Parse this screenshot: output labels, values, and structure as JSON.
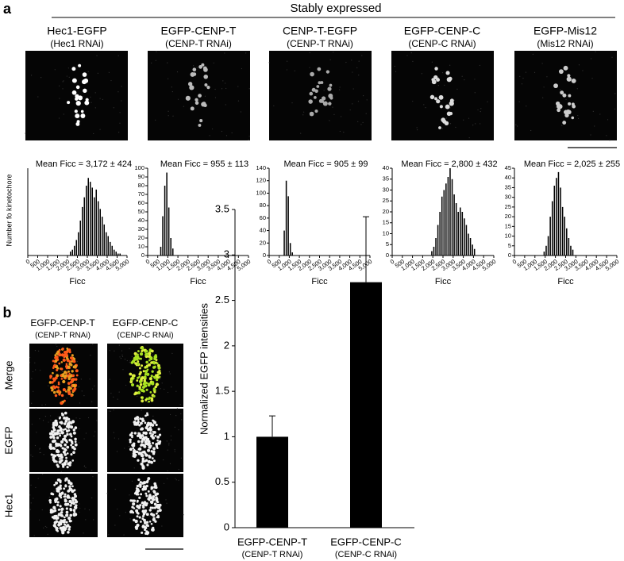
{
  "panel_a": {
    "label": "a",
    "header": "Stably expressed",
    "columns": [
      {
        "title": "Hec1-EGFP",
        "subtitle": "(Hec1 RNAi)"
      },
      {
        "title": "EGFP-CENP-T",
        "subtitle": "(CENP-T RNAi)"
      },
      {
        "title": "CENP-T-EGFP",
        "subtitle": "(CENP-T RNAi)"
      },
      {
        "title": "EGFP-CENP-C",
        "subtitle": "(CENP-C RNAi)"
      },
      {
        "title": "EGFP-Mis12",
        "subtitle": "(Mis12 RNAi)"
      }
    ]
  },
  "panel_b": {
    "label": "b",
    "columns": [
      {
        "title": "EGFP-CENP-T",
        "subtitle": "(CENP-T RNAi)"
      },
      {
        "title": "EGFP-CENP-C",
        "subtitle": "(CENP-C RNAi)"
      }
    ],
    "rows": [
      "Merge",
      "EGFP",
      "Hec1"
    ],
    "row_colors": [
      "#000000",
      "#1aa34a",
      "#e0168c"
    ]
  },
  "chart_data": [
    {
      "type": "histogram",
      "annotation": "Mean Ficc = 3,172 ± 424",
      "color": "#000000",
      "bins": [
        2100,
        2200,
        2300,
        2400,
        2500,
        2600,
        2700,
        2800,
        2900,
        3000,
        3100,
        3200,
        3300,
        3400,
        3500,
        3600,
        3700,
        3800,
        3900,
        4000,
        4100,
        4200,
        4300,
        4400,
        4500,
        4600,
        4700
      ],
      "values": [
        2,
        3,
        5,
        8,
        12,
        18,
        25,
        30,
        36,
        40,
        38,
        35,
        30,
        34,
        28,
        24,
        20,
        16,
        12,
        10,
        7,
        5,
        3,
        2,
        1,
        1
      ],
      "xlim": [
        0,
        5000
      ],
      "xticks": [
        0,
        500,
        {
          "value": 1000,
          "label": "1,000"
        },
        {
          "value": 1500,
          "label": "1,500"
        },
        {
          "value": 2000,
          "label": "2,000"
        },
        {
          "value": 2500,
          "label": "2,500"
        },
        {
          "value": 3000,
          "label": "3,000"
        },
        {
          "value": 3500,
          "label": "3,500"
        },
        {
          "value": 4000,
          "label": "4,000"
        },
        {
          "value": 4500,
          "label": "4,500"
        },
        {
          "value": 5000,
          "label": "5,000"
        }
      ],
      "xlabel": "Ficc",
      "ylabel": "Number fo kinetochore",
      "ylim": [
        0,
        45
      ]
    },
    {
      "type": "histogram",
      "annotation": "Mean Ficc = 955 ± 113",
      "color": "#000000",
      "bins": [
        600,
        700,
        800,
        900,
        1000,
        1100,
        1200,
        1300
      ],
      "values": [
        10,
        45,
        80,
        95,
        55,
        20,
        8
      ],
      "xlim": [
        0,
        5000
      ],
      "xticks": [
        0,
        500,
        {
          "value": 1000,
          "label": "1,000"
        },
        {
          "value": 1500,
          "label": "1,500"
        },
        {
          "value": 2000,
          "label": "2,000"
        },
        {
          "value": 2500,
          "label": "2,500"
        },
        {
          "value": 3000,
          "label": "3,000"
        },
        {
          "value": 3500,
          "label": "3,500"
        },
        {
          "value": 4000,
          "label": "4,000"
        },
        {
          "value": 4500,
          "label": "4,500"
        },
        {
          "value": 5000,
          "label": "5,000"
        }
      ],
      "xlabel": "Ficc",
      "ylim": [
        0,
        100
      ],
      "yticks": [
        0,
        10,
        20,
        30,
        40,
        50,
        60,
        70,
        80,
        90,
        100
      ]
    },
    {
      "type": "histogram",
      "annotation": "Mean Ficc = 905 ± 99",
      "color": "#000000",
      "bins": [
        700,
        800,
        900,
        1000,
        1100,
        1200
      ],
      "values": [
        40,
        120,
        95,
        20,
        5
      ],
      "xlim": [
        0,
        5000
      ],
      "xticks": [
        0,
        500,
        {
          "value": 1000,
          "label": "1,000"
        },
        {
          "value": 1500,
          "label": "1,500"
        },
        {
          "value": 2000,
          "label": "2,000"
        },
        {
          "value": 2500,
          "label": "2,500"
        },
        {
          "value": 3000,
          "label": "3,000"
        },
        {
          "value": 3500,
          "label": "3,500"
        },
        {
          "value": 4000,
          "label": "4,000"
        },
        {
          "value": 4500,
          "label": "4,500"
        },
        {
          "value": 5000,
          "label": "5,000"
        }
      ],
      "xlabel": "Ficc",
      "ylim": [
        0,
        140
      ],
      "yticks": [
        0,
        20,
        40,
        60,
        80,
        100,
        120,
        140
      ]
    },
    {
      "type": "histogram",
      "annotation": "Mean Ficc = 2,800 ± 432",
      "color": "#000000",
      "bins": [
        1900,
        2000,
        2100,
        2200,
        2300,
        2400,
        2500,
        2600,
        2700,
        2800,
        2900,
        3000,
        3100,
        3200,
        3300,
        3400,
        3500,
        3600,
        3700,
        3800,
        3900,
        4000,
        4100
      ],
      "values": [
        2,
        4,
        8,
        14,
        20,
        27,
        30,
        33,
        36,
        40,
        35,
        28,
        24,
        20,
        22,
        20,
        17,
        14,
        10,
        8,
        5,
        3
      ],
      "xlim": [
        0,
        5000
      ],
      "xticks": [
        0,
        500,
        {
          "value": 1000,
          "label": "1,000"
        },
        {
          "value": 1500,
          "label": "1,500"
        },
        {
          "value": 2000,
          "label": "2,000"
        },
        {
          "value": 2500,
          "label": "2,500"
        },
        {
          "value": 3000,
          "label": "3,000"
        },
        {
          "value": 3500,
          "label": "3,500"
        },
        {
          "value": 4000,
          "label": "4,000"
        },
        {
          "value": 4500,
          "label": "4,500"
        },
        {
          "value": 5000,
          "label": "5,000"
        }
      ],
      "xlabel": "Ficc",
      "ylim": [
        0,
        40
      ],
      "yticks": [
        0,
        5,
        10,
        15,
        20,
        25,
        30,
        35,
        40
      ]
    },
    {
      "type": "histogram",
      "annotation": "Mean Ficc = 2,025 ± 255",
      "color": "#000000",
      "bins": [
        1400,
        1500,
        1600,
        1700,
        1800,
        1900,
        2000,
        2100,
        2200,
        2300,
        2400,
        2500,
        2600,
        2700,
        2800,
        2900
      ],
      "values": [
        2,
        5,
        10,
        20,
        28,
        36,
        40,
        43,
        35,
        25,
        20,
        14,
        9,
        5,
        3
      ],
      "xlim": [
        0,
        5000
      ],
      "xticks": [
        0,
        500,
        {
          "value": 1000,
          "label": "1,000"
        },
        {
          "value": 1500,
          "label": "1,500"
        },
        {
          "value": 2000,
          "label": "2,000"
        },
        {
          "value": 2500,
          "label": "2,500"
        },
        {
          "value": 3000,
          "label": "3,000"
        },
        {
          "value": 3500,
          "label": "3,500"
        },
        {
          "value": 4000,
          "label": "4,000"
        },
        {
          "value": 4500,
          "label": "4,500"
        },
        {
          "value": 5000,
          "label": "5,000"
        }
      ],
      "xlabel": "Ficc",
      "ylim": [
        0,
        45
      ],
      "yticks": [
        0,
        5,
        10,
        15,
        20,
        25,
        30,
        35,
        40,
        45
      ]
    },
    {
      "type": "bar",
      "color": "#000000",
      "categories": [
        "EGFP-CENP-T",
        "EGFP-CENP-C"
      ],
      "category_sublabels": [
        "(CENP-T RNAi)",
        "(CENP-C RNAi)"
      ],
      "values": [
        1,
        2.7
      ],
      "errors": [
        0.23,
        0.72
      ],
      "ylabel": "Normalized EGFP intensities",
      "ylim": [
        0,
        3.5
      ],
      "yticks": [
        0,
        0.5,
        1,
        1.5,
        2,
        2.5,
        3,
        3.5
      ]
    }
  ]
}
